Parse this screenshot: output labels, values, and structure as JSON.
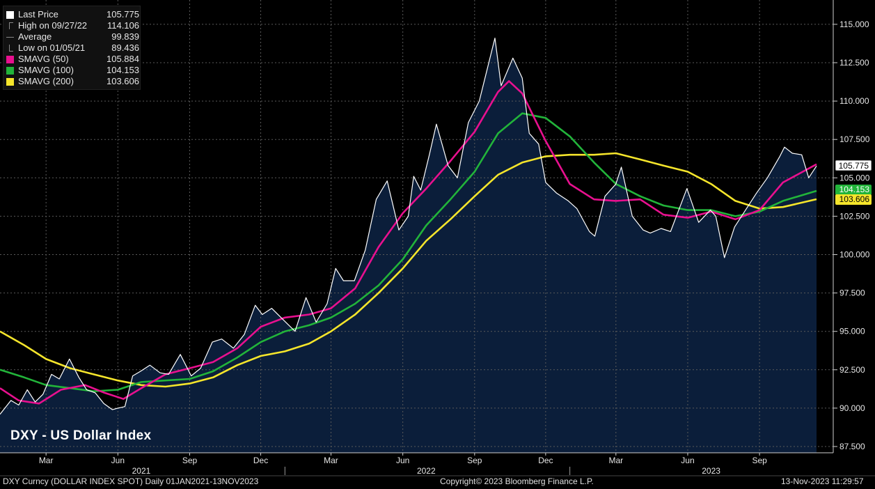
{
  "chart_data": {
    "type": "line",
    "title": "DXY - US Dollar Index",
    "ylim": [
      87.5,
      116.0
    ],
    "ytick_values": [
      87.5,
      90.0,
      92.5,
      95.0,
      97.5,
      100.0,
      102.5,
      105.0,
      107.5,
      110.0,
      112.5,
      115.0
    ],
    "ytick_labels": [
      "87.500",
      "90.000",
      "92.500",
      "95.000",
      "97.500",
      "100.000",
      "102.500",
      "105.000",
      "107.500",
      "110.000",
      "112.500",
      "115.000"
    ],
    "x_start": "2021-01-01",
    "x_end": "2023-11-13",
    "month_ticks": [
      {
        "date": "2021-03-01",
        "label": "Mar"
      },
      {
        "date": "2021-06-01",
        "label": "Jun"
      },
      {
        "date": "2021-09-01",
        "label": "Sep"
      },
      {
        "date": "2021-12-01",
        "label": "Dec"
      },
      {
        "date": "2022-03-01",
        "label": "Mar"
      },
      {
        "date": "2022-06-01",
        "label": "Jun"
      },
      {
        "date": "2022-09-01",
        "label": "Sep"
      },
      {
        "date": "2022-12-01",
        "label": "Dec"
      },
      {
        "date": "2023-03-01",
        "label": "Mar"
      },
      {
        "date": "2023-06-01",
        "label": "Jun"
      },
      {
        "date": "2023-09-01",
        "label": "Sep"
      }
    ],
    "year_ticks": [
      {
        "date": "2021-07-01",
        "label": "2021"
      },
      {
        "date": "2022-07-01",
        "label": "2022"
      },
      {
        "date": "2023-07-01",
        "label": "2023"
      }
    ],
    "year_dividers": [
      "2022-01-01",
      "2023-01-01"
    ],
    "series": [
      {
        "name": "Last Price",
        "color": "#ffffff",
        "fill": "#0b1e3a",
        "points": [
          [
            "2021-01-01",
            89.6
          ],
          [
            "2021-01-15",
            90.5
          ],
          [
            "2021-01-25",
            90.2
          ],
          [
            "2021-02-05",
            91.2
          ],
          [
            "2021-02-15",
            90.4
          ],
          [
            "2021-02-25",
            90.9
          ],
          [
            "2021-03-08",
            92.2
          ],
          [
            "2021-03-18",
            91.9
          ],
          [
            "2021-03-31",
            93.2
          ],
          [
            "2021-04-12",
            92.0
          ],
          [
            "2021-04-22",
            91.2
          ],
          [
            "2021-05-03",
            91.0
          ],
          [
            "2021-05-14",
            90.3
          ],
          [
            "2021-05-25",
            89.9
          ],
          [
            "2021-06-01",
            90.0
          ],
          [
            "2021-06-10",
            90.1
          ],
          [
            "2021-06-20",
            92.1
          ],
          [
            "2021-06-30",
            92.4
          ],
          [
            "2021-07-12",
            92.8
          ],
          [
            "2021-07-25",
            92.3
          ],
          [
            "2021-08-05",
            92.2
          ],
          [
            "2021-08-20",
            93.5
          ],
          [
            "2021-09-03",
            92.1
          ],
          [
            "2021-09-15",
            92.6
          ],
          [
            "2021-09-30",
            94.3
          ],
          [
            "2021-10-12",
            94.5
          ],
          [
            "2021-10-27",
            93.9
          ],
          [
            "2021-11-10",
            94.8
          ],
          [
            "2021-11-24",
            96.7
          ],
          [
            "2021-12-03",
            96.1
          ],
          [
            "2021-12-15",
            96.5
          ],
          [
            "2021-12-31",
            95.7
          ],
          [
            "2022-01-14",
            95.0
          ],
          [
            "2022-01-28",
            97.2
          ],
          [
            "2022-02-10",
            95.6
          ],
          [
            "2022-02-24",
            96.8
          ],
          [
            "2022-03-07",
            99.1
          ],
          [
            "2022-03-17",
            98.3
          ],
          [
            "2022-03-31",
            98.3
          ],
          [
            "2022-04-14",
            100.3
          ],
          [
            "2022-04-28",
            103.6
          ],
          [
            "2022-05-12",
            104.8
          ],
          [
            "2022-05-27",
            101.6
          ],
          [
            "2022-06-08",
            102.5
          ],
          [
            "2022-06-15",
            105.1
          ],
          [
            "2022-06-24",
            104.2
          ],
          [
            "2022-07-05",
            106.5
          ],
          [
            "2022-07-14",
            108.5
          ],
          [
            "2022-07-29",
            105.8
          ],
          [
            "2022-08-10",
            105.0
          ],
          [
            "2022-08-24",
            108.6
          ],
          [
            "2022-09-07",
            110.0
          ],
          [
            "2022-09-27",
            114.1
          ],
          [
            "2022-10-05",
            111.0
          ],
          [
            "2022-10-20",
            112.8
          ],
          [
            "2022-11-01",
            111.5
          ],
          [
            "2022-11-10",
            107.9
          ],
          [
            "2022-11-22",
            107.2
          ],
          [
            "2022-12-01",
            104.7
          ],
          [
            "2022-12-15",
            104.0
          ],
          [
            "2022-12-30",
            103.5
          ],
          [
            "2023-01-10",
            103.0
          ],
          [
            "2023-01-26",
            101.5
          ],
          [
            "2023-02-02",
            101.2
          ],
          [
            "2023-02-15",
            103.8
          ],
          [
            "2023-03-01",
            104.6
          ],
          [
            "2023-03-08",
            105.7
          ],
          [
            "2023-03-22",
            102.5
          ],
          [
            "2023-04-05",
            101.6
          ],
          [
            "2023-04-14",
            101.4
          ],
          [
            "2023-04-28",
            101.7
          ],
          [
            "2023-05-10",
            101.5
          ],
          [
            "2023-05-31",
            104.3
          ],
          [
            "2023-06-15",
            102.1
          ],
          [
            "2023-06-30",
            102.9
          ],
          [
            "2023-07-07",
            102.5
          ],
          [
            "2023-07-18",
            99.8
          ],
          [
            "2023-07-31",
            101.8
          ],
          [
            "2023-08-14",
            102.9
          ],
          [
            "2023-08-28",
            104.0
          ],
          [
            "2023-09-11",
            105.0
          ],
          [
            "2023-09-27",
            106.4
          ],
          [
            "2023-10-03",
            107.0
          ],
          [
            "2023-10-13",
            106.6
          ],
          [
            "2023-10-25",
            106.5
          ],
          [
            "2023-11-03",
            105.0
          ],
          [
            "2023-11-13",
            105.775
          ]
        ]
      },
      {
        "name": "SMAVG (50)",
        "color": "#e8108f",
        "points": [
          [
            "2021-01-01",
            91.3
          ],
          [
            "2021-01-25",
            90.5
          ],
          [
            "2021-02-20",
            90.3
          ],
          [
            "2021-03-20",
            91.2
          ],
          [
            "2021-04-20",
            91.5
          ],
          [
            "2021-05-15",
            91.0
          ],
          [
            "2021-06-08",
            90.6
          ],
          [
            "2021-07-01",
            91.3
          ],
          [
            "2021-08-01",
            92.2
          ],
          [
            "2021-09-01",
            92.6
          ],
          [
            "2021-10-01",
            93.0
          ],
          [
            "2021-11-01",
            93.9
          ],
          [
            "2021-12-01",
            95.3
          ],
          [
            "2022-01-01",
            95.9
          ],
          [
            "2022-02-01",
            96.1
          ],
          [
            "2022-03-01",
            96.5
          ],
          [
            "2022-04-01",
            97.8
          ],
          [
            "2022-05-01",
            100.5
          ],
          [
            "2022-06-01",
            102.7
          ],
          [
            "2022-07-01",
            104.3
          ],
          [
            "2022-08-01",
            106.1
          ],
          [
            "2022-09-01",
            108.0
          ],
          [
            "2022-10-01",
            110.6
          ],
          [
            "2022-10-15",
            111.3
          ],
          [
            "2022-11-01",
            110.5
          ],
          [
            "2022-12-01",
            107.4
          ],
          [
            "2023-01-01",
            104.6
          ],
          [
            "2023-02-01",
            103.6
          ],
          [
            "2023-03-01",
            103.5
          ],
          [
            "2023-04-01",
            103.6
          ],
          [
            "2023-05-01",
            102.6
          ],
          [
            "2023-06-01",
            102.4
          ],
          [
            "2023-07-01",
            102.8
          ],
          [
            "2023-08-01",
            102.3
          ],
          [
            "2023-09-01",
            102.9
          ],
          [
            "2023-10-01",
            104.7
          ],
          [
            "2023-11-13",
            105.884
          ]
        ]
      },
      {
        "name": "SMAVG (100)",
        "color": "#22b43a",
        "points": [
          [
            "2021-01-01",
            92.5
          ],
          [
            "2021-02-01",
            92.0
          ],
          [
            "2021-03-01",
            91.5
          ],
          [
            "2021-04-01",
            91.3
          ],
          [
            "2021-05-01",
            91.1
          ],
          [
            "2021-06-01",
            91.2
          ],
          [
            "2021-07-01",
            91.7
          ],
          [
            "2021-08-01",
            91.8
          ],
          [
            "2021-09-01",
            91.9
          ],
          [
            "2021-10-01",
            92.4
          ],
          [
            "2021-11-01",
            93.3
          ],
          [
            "2021-12-01",
            94.3
          ],
          [
            "2022-01-01",
            95.0
          ],
          [
            "2022-02-01",
            95.4
          ],
          [
            "2022-03-01",
            95.9
          ],
          [
            "2022-04-01",
            96.8
          ],
          [
            "2022-05-01",
            98.0
          ],
          [
            "2022-06-01",
            99.7
          ],
          [
            "2022-07-01",
            101.9
          ],
          [
            "2022-08-01",
            103.6
          ],
          [
            "2022-09-01",
            105.4
          ],
          [
            "2022-10-01",
            107.9
          ],
          [
            "2022-11-01",
            109.2
          ],
          [
            "2022-12-01",
            108.9
          ],
          [
            "2023-01-01",
            107.7
          ],
          [
            "2023-02-01",
            106.0
          ],
          [
            "2023-03-01",
            104.6
          ],
          [
            "2023-04-01",
            103.8
          ],
          [
            "2023-05-01",
            103.2
          ],
          [
            "2023-06-01",
            102.9
          ],
          [
            "2023-07-01",
            102.9
          ],
          [
            "2023-08-01",
            102.5
          ],
          [
            "2023-09-01",
            102.8
          ],
          [
            "2023-10-01",
            103.5
          ],
          [
            "2023-11-13",
            104.153
          ]
        ]
      },
      {
        "name": "SMAVG (200)",
        "color": "#f5e52b",
        "points": [
          [
            "2021-01-01",
            95.0
          ],
          [
            "2021-02-01",
            94.1
          ],
          [
            "2021-03-01",
            93.2
          ],
          [
            "2021-04-01",
            92.6
          ],
          [
            "2021-05-01",
            92.2
          ],
          [
            "2021-06-01",
            91.8
          ],
          [
            "2021-07-01",
            91.5
          ],
          [
            "2021-08-01",
            91.4
          ],
          [
            "2021-09-01",
            91.6
          ],
          [
            "2021-10-01",
            92.0
          ],
          [
            "2021-11-01",
            92.8
          ],
          [
            "2021-12-01",
            93.4
          ],
          [
            "2022-01-01",
            93.7
          ],
          [
            "2022-02-01",
            94.2
          ],
          [
            "2022-03-01",
            95.0
          ],
          [
            "2022-04-01",
            96.1
          ],
          [
            "2022-05-01",
            97.5
          ],
          [
            "2022-06-01",
            99.1
          ],
          [
            "2022-07-01",
            100.9
          ],
          [
            "2022-08-01",
            102.3
          ],
          [
            "2022-09-01",
            103.8
          ],
          [
            "2022-10-01",
            105.2
          ],
          [
            "2022-11-01",
            106.0
          ],
          [
            "2022-12-01",
            106.4
          ],
          [
            "2023-01-01",
            106.5
          ],
          [
            "2023-02-01",
            106.5
          ],
          [
            "2023-03-01",
            106.6
          ],
          [
            "2023-04-01",
            106.2
          ],
          [
            "2023-05-01",
            105.8
          ],
          [
            "2023-06-01",
            105.4
          ],
          [
            "2023-07-01",
            104.6
          ],
          [
            "2023-08-01",
            103.5
          ],
          [
            "2023-09-01",
            103.0
          ],
          [
            "2023-10-01",
            103.1
          ],
          [
            "2023-11-13",
            103.606
          ]
        ]
      }
    ],
    "grid": true
  },
  "legend": {
    "rows": [
      {
        "label": "Last Price",
        "value": "105.775",
        "color": "#ffffff"
      },
      {
        "label": "High on 09/27/22",
        "value": "114.106",
        "color": ""
      },
      {
        "label": "Average",
        "value": "99.839",
        "color": ""
      },
      {
        "label": "Low on 01/05/21",
        "value": "89.436",
        "color": ""
      },
      {
        "label": "SMAVG (50)",
        "value": "105.884",
        "color": "#e8108f"
      },
      {
        "label": "SMAVG (100)",
        "value": "104.153",
        "color": "#22b43a"
      },
      {
        "label": "SMAVG (200)",
        "value": "103.606",
        "color": "#f5e52b"
      }
    ]
  },
  "last_value_tags": {
    "price": "105.775",
    "sma100": "104.153",
    "sma200": "103.606"
  },
  "footer": {
    "left": "DXY Curncy (DOLLAR INDEX SPOT)  Daily 01JAN2021-13NOV2023",
    "center": "Copyright© 2023 Bloomberg Finance L.P.",
    "right": "13-Nov-2023 11:29:57"
  }
}
